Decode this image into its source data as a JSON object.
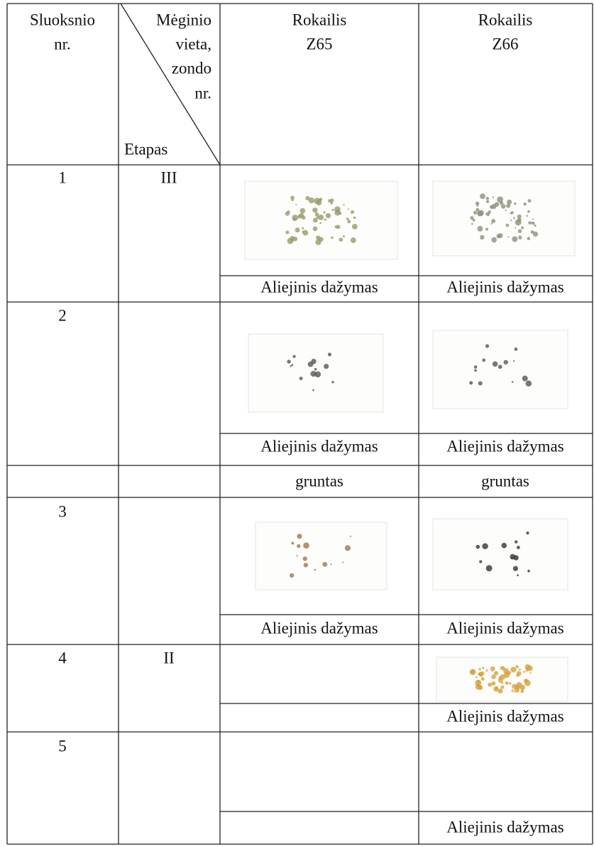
{
  "header": {
    "layer": [
      "Sluoksnio",
      "nr."
    ],
    "location": [
      "Mėginio",
      "vieta,",
      "zondo",
      "nr."
    ],
    "stage": "Etapas",
    "col_z65": [
      "Rokailis",
      "Z65"
    ],
    "col_z66": [
      "Rokailis",
      "Z66"
    ]
  },
  "rows": [
    {
      "layer": "1",
      "stage": "III",
      "z65": "Aliejinis dažymas",
      "z66": "Aliejinis dažymas"
    },
    {
      "layer": "2",
      "z65": "Aliejinis dažymas",
      "z66": "Aliejinis dažymas"
    },
    {
      "z65": "gruntas",
      "z66": "gruntas"
    },
    {
      "layer": "3",
      "z65": "Aliejinis dažymas",
      "z66": "Aliejinis dažymas"
    },
    {
      "layer": "4",
      "stage": "II",
      "z66": "Aliejinis dažymas"
    },
    {
      "layer": "5",
      "z66": "Aliejinis dažymas"
    }
  ]
}
